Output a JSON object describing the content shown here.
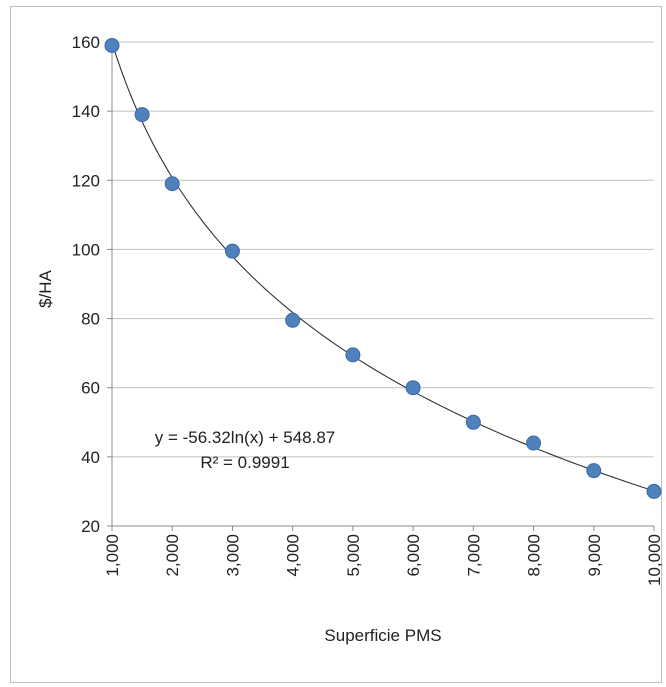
{
  "chart_data": {
    "type": "scatter",
    "title": "",
    "xlabel": "Superficie PMS",
    "ylabel": "$/HA",
    "xlim": [
      1000,
      10000
    ],
    "ylim": [
      20,
      160
    ],
    "x_ticks": [
      1000,
      2000,
      3000,
      4000,
      5000,
      6000,
      7000,
      8000,
      9000,
      10000
    ],
    "x_tick_labels": [
      "1,000",
      "2,000",
      "3,000",
      "4,000",
      "5,000",
      "6,000",
      "7,000",
      "8,000",
      "9,000",
      "10,000"
    ],
    "y_ticks": [
      20,
      40,
      60,
      80,
      100,
      120,
      140,
      160
    ],
    "y_tick_labels": [
      "20",
      "40",
      "60",
      "80",
      "100",
      "120",
      "140",
      "160"
    ],
    "grid": "horizontal",
    "marker_color": "#4f81bd",
    "marker_edge_color": "#3a6aa5",
    "trendline_color": "#333333",
    "points": [
      {
        "x": 1000,
        "y": 159
      },
      {
        "x": 1500,
        "y": 139
      },
      {
        "x": 2000,
        "y": 119
      },
      {
        "x": 3000,
        "y": 99.5
      },
      {
        "x": 4000,
        "y": 79.5
      },
      {
        "x": 5000,
        "y": 69.5
      },
      {
        "x": 6000,
        "y": 60
      },
      {
        "x": 7000,
        "y": 50
      },
      {
        "x": 8000,
        "y": 44
      },
      {
        "x": 9000,
        "y": 36
      },
      {
        "x": 10000,
        "y": 30
      }
    ],
    "trendline": {
      "type": "logarithmic",
      "slope": -56.32,
      "intercept": 548.87,
      "equation_label": "y = -56.32ln(x) + 548.87",
      "r2_label": "R² = 0.9991"
    }
  }
}
